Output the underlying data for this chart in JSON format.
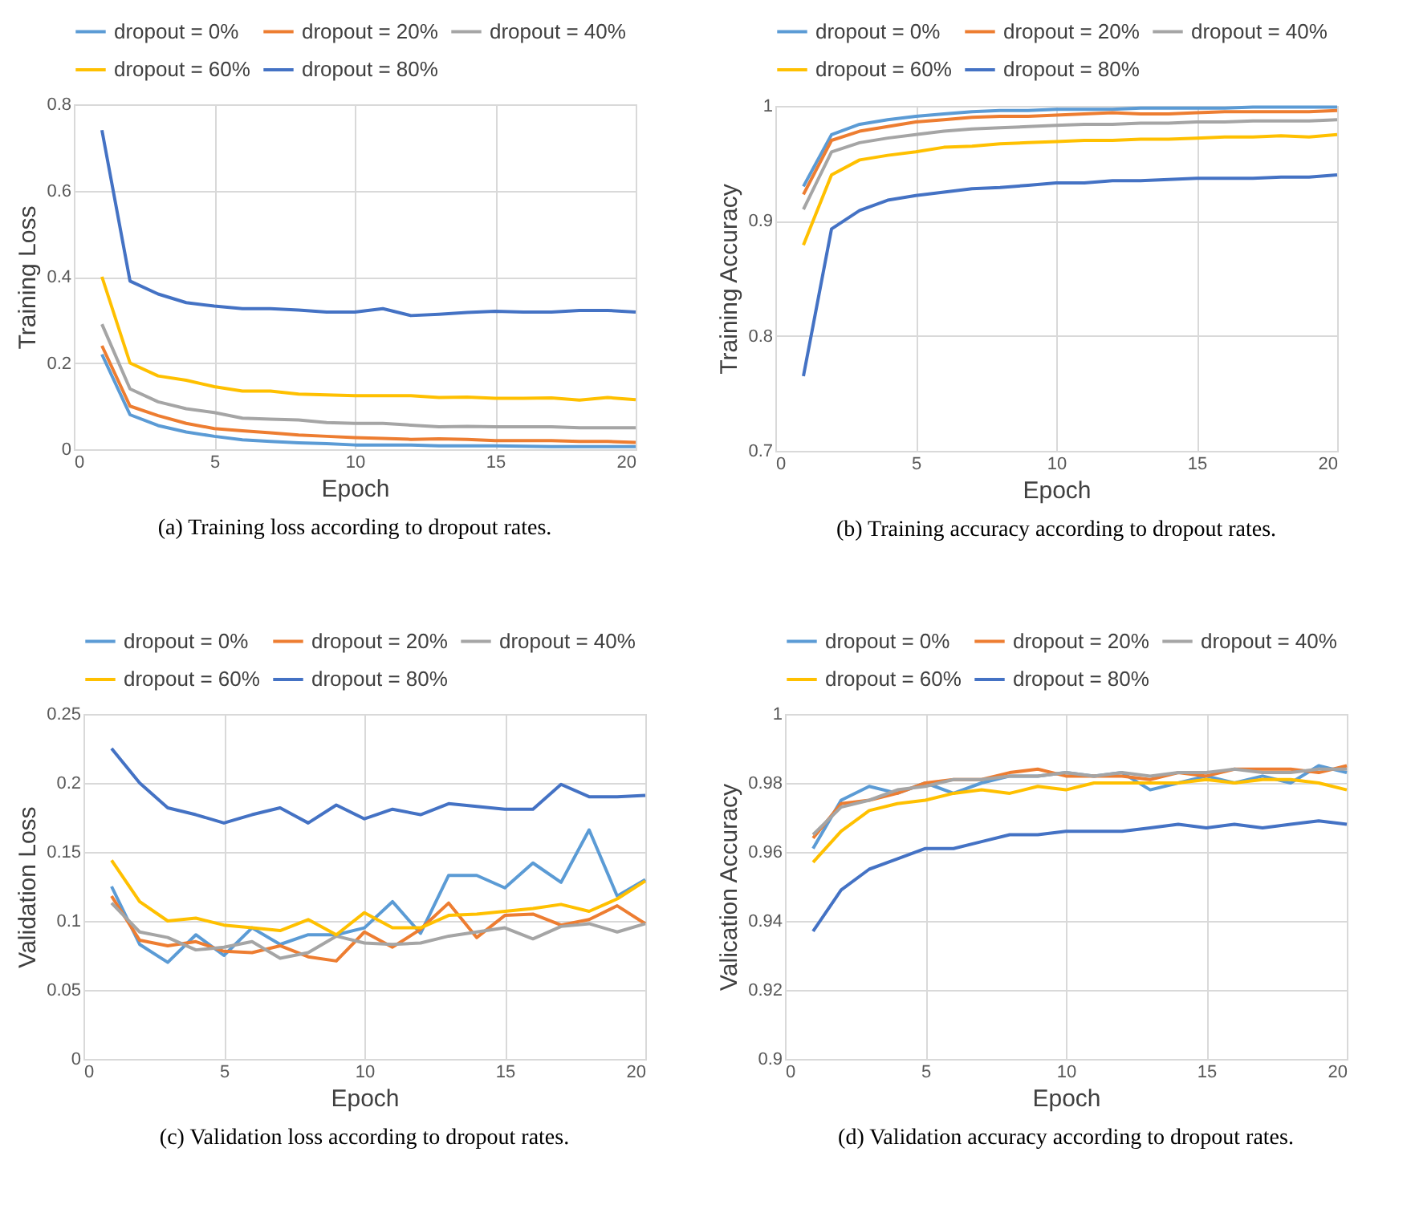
{
  "chart_data": [
    {
      "type": "line",
      "title": "(a) Training loss according to dropout rates.",
      "xlabel": "Epoch",
      "ylabel": "Training Loss",
      "x": [
        1,
        2,
        3,
        4,
        5,
        6,
        7,
        8,
        9,
        10,
        11,
        12,
        13,
        14,
        15,
        16,
        17,
        18,
        19,
        20
      ],
      "xlim": [
        0,
        20
      ],
      "xticks": [
        0,
        5,
        10,
        15,
        20
      ],
      "ylim": [
        0,
        0.8
      ],
      "yticks": [
        0,
        0.2,
        0.4,
        0.6,
        0.8
      ],
      "grid": true,
      "legend": "top",
      "series": [
        {
          "name": "dropout = 0%",
          "color": "#5b9bd5",
          "values": [
            0.22,
            0.08,
            0.055,
            0.04,
            0.03,
            0.022,
            0.018,
            0.015,
            0.013,
            0.01,
            0.01,
            0.01,
            0.008,
            0.008,
            0.008,
            0.007,
            0.006,
            0.006,
            0.006,
            0.006
          ]
        },
        {
          "name": "dropout = 20%",
          "color": "#ed7d31",
          "values": [
            0.24,
            0.1,
            0.078,
            0.06,
            0.048,
            0.043,
            0.038,
            0.033,
            0.03,
            0.027,
            0.025,
            0.023,
            0.024,
            0.023,
            0.02,
            0.02,
            0.02,
            0.018,
            0.018,
            0.016
          ]
        },
        {
          "name": "dropout = 40%",
          "color": "#a5a5a5",
          "values": [
            0.29,
            0.14,
            0.11,
            0.094,
            0.085,
            0.072,
            0.07,
            0.068,
            0.062,
            0.06,
            0.06,
            0.056,
            0.052,
            0.053,
            0.052,
            0.052,
            0.052,
            0.05,
            0.05,
            0.05
          ]
        },
        {
          "name": "dropout = 60%",
          "color": "#ffc000",
          "values": [
            0.4,
            0.2,
            0.17,
            0.16,
            0.145,
            0.135,
            0.135,
            0.128,
            0.126,
            0.124,
            0.124,
            0.124,
            0.12,
            0.121,
            0.118,
            0.118,
            0.119,
            0.114,
            0.12,
            0.115
          ]
        },
        {
          "name": "dropout = 80%",
          "color": "#4472c4",
          "values": [
            0.74,
            0.39,
            0.36,
            0.34,
            0.332,
            0.326,
            0.326,
            0.323,
            0.318,
            0.318,
            0.326,
            0.31,
            0.313,
            0.317,
            0.32,
            0.318,
            0.318,
            0.322,
            0.322,
            0.318
          ]
        }
      ]
    },
    {
      "type": "line",
      "title": "(b) Training accuracy according to dropout rates.",
      "xlabel": "Epoch",
      "ylabel": "Training Accuracy",
      "x": [
        1,
        2,
        3,
        4,
        5,
        6,
        7,
        8,
        9,
        10,
        11,
        12,
        13,
        14,
        15,
        16,
        17,
        18,
        19,
        20
      ],
      "xlim": [
        0,
        20
      ],
      "xticks": [
        0,
        5,
        10,
        15,
        20
      ],
      "ylim": [
        0.7,
        1
      ],
      "yticks": [
        0.7,
        0.8,
        0.9,
        1
      ],
      "grid": true,
      "legend": "top",
      "series": [
        {
          "name": "dropout = 0%",
          "color": "#5b9bd5",
          "values": [
            0.93,
            0.975,
            0.984,
            0.988,
            0.991,
            0.993,
            0.995,
            0.996,
            0.996,
            0.997,
            0.997,
            0.997,
            0.998,
            0.998,
            0.998,
            0.998,
            0.999,
            0.999,
            0.999,
            0.999
          ]
        },
        {
          "name": "dropout = 20%",
          "color": "#ed7d31",
          "values": [
            0.923,
            0.97,
            0.978,
            0.982,
            0.986,
            0.988,
            0.99,
            0.991,
            0.991,
            0.992,
            0.993,
            0.994,
            0.993,
            0.993,
            0.994,
            0.995,
            0.995,
            0.995,
            0.995,
            0.996
          ]
        },
        {
          "name": "dropout = 40%",
          "color": "#a5a5a5",
          "values": [
            0.91,
            0.96,
            0.968,
            0.972,
            0.975,
            0.978,
            0.98,
            0.981,
            0.982,
            0.983,
            0.984,
            0.984,
            0.985,
            0.985,
            0.986,
            0.986,
            0.987,
            0.987,
            0.987,
            0.988
          ]
        },
        {
          "name": "dropout = 60%",
          "color": "#ffc000",
          "values": [
            0.879,
            0.94,
            0.953,
            0.957,
            0.96,
            0.964,
            0.965,
            0.967,
            0.968,
            0.969,
            0.97,
            0.97,
            0.971,
            0.971,
            0.972,
            0.973,
            0.973,
            0.974,
            0.973,
            0.975
          ]
        },
        {
          "name": "dropout = 80%",
          "color": "#4472c4",
          "values": [
            0.765,
            0.893,
            0.909,
            0.918,
            0.922,
            0.925,
            0.928,
            0.929,
            0.931,
            0.933,
            0.933,
            0.935,
            0.935,
            0.936,
            0.937,
            0.937,
            0.937,
            0.938,
            0.938,
            0.94
          ]
        }
      ]
    },
    {
      "type": "line",
      "title": "(c) Validation loss according to dropout rates.",
      "xlabel": "Epoch",
      "ylabel": "Validation Loss",
      "x": [
        1,
        2,
        3,
        4,
        5,
        6,
        7,
        8,
        9,
        10,
        11,
        12,
        13,
        14,
        15,
        16,
        17,
        18,
        19,
        20
      ],
      "xlim": [
        0,
        20
      ],
      "xticks": [
        0,
        5,
        10,
        15,
        20
      ],
      "ylim": [
        0,
        0.25
      ],
      "yticks": [
        0,
        0.05,
        0.1,
        0.15,
        0.2,
        0.25
      ],
      "grid": true,
      "legend": "top",
      "series": [
        {
          "name": "dropout = 0%",
          "color": "#5b9bd5",
          "values": [
            0.125,
            0.083,
            0.07,
            0.09,
            0.075,
            0.095,
            0.083,
            0.09,
            0.09,
            0.095,
            0.114,
            0.091,
            0.133,
            0.133,
            0.124,
            0.142,
            0.128,
            0.166,
            0.118,
            0.13
          ]
        },
        {
          "name": "dropout = 20%",
          "color": "#ed7d31",
          "values": [
            0.118,
            0.086,
            0.082,
            0.085,
            0.078,
            0.077,
            0.082,
            0.074,
            0.071,
            0.092,
            0.081,
            0.094,
            0.113,
            0.088,
            0.104,
            0.105,
            0.097,
            0.101,
            0.111,
            0.098
          ]
        },
        {
          "name": "dropout = 40%",
          "color": "#a5a5a5",
          "values": [
            0.113,
            0.092,
            0.088,
            0.079,
            0.081,
            0.085,
            0.073,
            0.077,
            0.089,
            0.084,
            0.083,
            0.084,
            0.089,
            0.092,
            0.095,
            0.087,
            0.096,
            0.098,
            0.092,
            0.098
          ]
        },
        {
          "name": "dropout = 60%",
          "color": "#ffc000",
          "values": [
            0.144,
            0.114,
            0.1,
            0.102,
            0.097,
            0.095,
            0.093,
            0.101,
            0.09,
            0.106,
            0.095,
            0.095,
            0.104,
            0.105,
            0.107,
            0.109,
            0.112,
            0.107,
            0.116,
            0.129
          ]
        },
        {
          "name": "dropout = 80%",
          "color": "#4472c4",
          "values": [
            0.225,
            0.2,
            0.182,
            0.177,
            0.171,
            0.177,
            0.182,
            0.171,
            0.184,
            0.174,
            0.181,
            0.177,
            0.185,
            0.183,
            0.181,
            0.181,
            0.199,
            0.19,
            0.19,
            0.191
          ]
        }
      ]
    },
    {
      "type": "line",
      "title": "(d) Validation accuracy according to dropout rates.",
      "xlabel": "Epoch",
      "ylabel": "Valication Accuracy",
      "x": [
        1,
        2,
        3,
        4,
        5,
        6,
        7,
        8,
        9,
        10,
        11,
        12,
        13,
        14,
        15,
        16,
        17,
        18,
        19,
        20
      ],
      "xlim": [
        0,
        20
      ],
      "xticks": [
        0,
        5,
        10,
        15,
        20
      ],
      "ylim": [
        0.9,
        1
      ],
      "yticks": [
        0.9,
        0.92,
        0.94,
        0.96,
        0.98,
        1
      ],
      "grid": true,
      "legend": "top",
      "series": [
        {
          "name": "dropout = 0%",
          "color": "#5b9bd5",
          "values": [
            0.961,
            0.975,
            0.979,
            0.977,
            0.98,
            0.977,
            0.98,
            0.982,
            0.982,
            0.983,
            0.982,
            0.983,
            0.978,
            0.98,
            0.982,
            0.98,
            0.982,
            0.98,
            0.985,
            0.983
          ]
        },
        {
          "name": "dropout = 20%",
          "color": "#ed7d31",
          "values": [
            0.964,
            0.974,
            0.975,
            0.977,
            0.98,
            0.981,
            0.981,
            0.983,
            0.984,
            0.982,
            0.982,
            0.982,
            0.981,
            0.983,
            0.982,
            0.984,
            0.984,
            0.984,
            0.983,
            0.985
          ]
        },
        {
          "name": "dropout = 40%",
          "color": "#a5a5a5",
          "values": [
            0.965,
            0.973,
            0.975,
            0.978,
            0.979,
            0.981,
            0.981,
            0.982,
            0.982,
            0.983,
            0.982,
            0.983,
            0.982,
            0.983,
            0.983,
            0.984,
            0.983,
            0.983,
            0.984,
            0.984
          ]
        },
        {
          "name": "dropout = 60%",
          "color": "#ffc000",
          "values": [
            0.957,
            0.966,
            0.972,
            0.974,
            0.975,
            0.977,
            0.978,
            0.977,
            0.979,
            0.978,
            0.98,
            0.98,
            0.98,
            0.98,
            0.981,
            0.98,
            0.981,
            0.981,
            0.98,
            0.978
          ]
        },
        {
          "name": "dropout = 80%",
          "color": "#4472c4",
          "values": [
            0.937,
            0.949,
            0.955,
            0.958,
            0.961,
            0.961,
            0.963,
            0.965,
            0.965,
            0.966,
            0.966,
            0.966,
            0.967,
            0.968,
            0.967,
            0.968,
            0.967,
            0.968,
            0.969,
            0.968
          ]
        }
      ]
    }
  ]
}
